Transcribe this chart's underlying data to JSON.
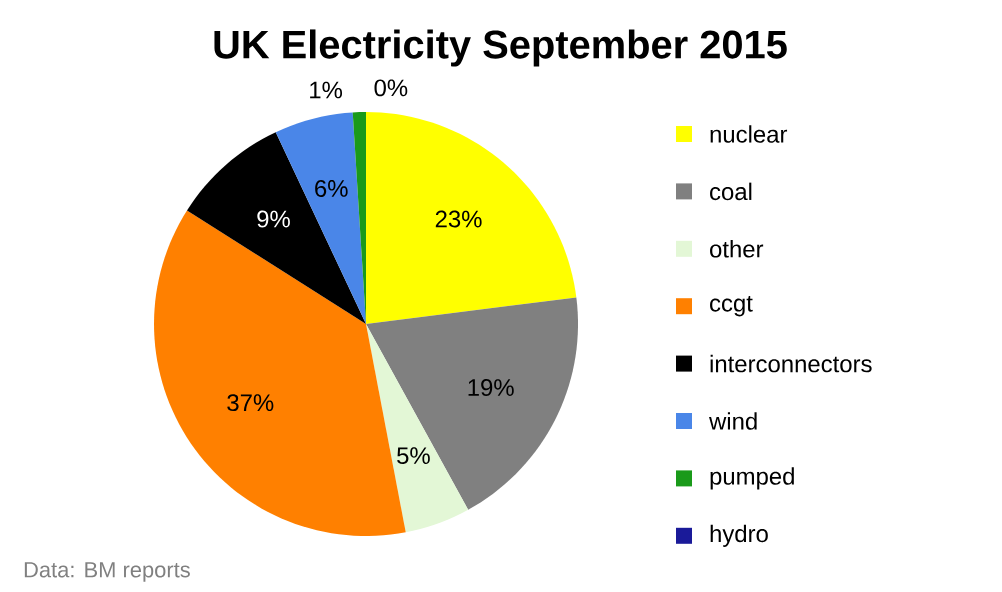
{
  "chart_data": {
    "type": "pie",
    "title": "UK Electricity September 2015",
    "categories": [
      "nuclear",
      "coal",
      "other",
      "ccgt",
      "interconnectors",
      "wind",
      "pumped",
      "hydro"
    ],
    "values": [
      23,
      19,
      5,
      37,
      9,
      6,
      1,
      0
    ],
    "value_labels": [
      "23%",
      "19%",
      "5%",
      "37%",
      "9%",
      "6%",
      "1%",
      "0%"
    ],
    "colors": [
      "#ffff00",
      "#808080",
      "#e3f7d6",
      "#ff8000",
      "#000000",
      "#4a86e8",
      "#1a9a1a",
      "#1a1a99"
    ],
    "legend": "right",
    "annotations": [
      "Data: BM reports"
    ]
  }
}
